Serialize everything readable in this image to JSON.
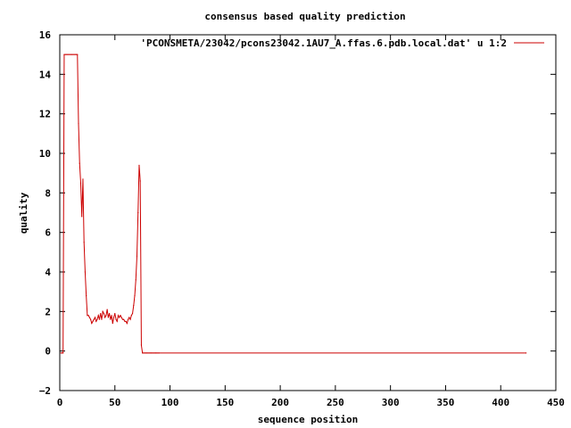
{
  "chart_data": {
    "type": "line",
    "title": "consensus based quality prediction",
    "xlabel": "sequence position",
    "ylabel": "quality",
    "xlim": [
      0,
      450
    ],
    "ylim": [
      -2,
      16
    ],
    "xticks": [
      0,
      50,
      100,
      150,
      200,
      250,
      300,
      350,
      400,
      450
    ],
    "yticks": [
      -2,
      0,
      2,
      4,
      6,
      8,
      10,
      12,
      14,
      16
    ],
    "xtick_labels": [
      "0",
      "50",
      "100",
      "150",
      "200",
      "250",
      "300",
      "350",
      "400",
      "450"
    ],
    "ytick_labels": [
      "−2",
      "0",
      "2",
      "4",
      "6",
      "8",
      "10",
      "12",
      "14",
      "16"
    ],
    "legend_position": "top-right",
    "grid": false,
    "series": [
      {
        "name": "'PCONSMETA/23042/pcons23042.1AU7_A.ffas.6.pdb.local.dat' u 1:2",
        "color": "#cc0000",
        "x": [
          1,
          2,
          3,
          4,
          5,
          6,
          7,
          8,
          9,
          10,
          11,
          12,
          13,
          14,
          15,
          16,
          17,
          18,
          19,
          20,
          21,
          22,
          23,
          24,
          25,
          26,
          27,
          28,
          29,
          30,
          31,
          32,
          33,
          34,
          35,
          36,
          37,
          38,
          39,
          40,
          41,
          42,
          43,
          44,
          45,
          46,
          47,
          48,
          49,
          50,
          51,
          52,
          53,
          54,
          55,
          56,
          57,
          58,
          59,
          60,
          61,
          62,
          63,
          64,
          65,
          66,
          67,
          68,
          69,
          70,
          71,
          72,
          73,
          74,
          75,
          76,
          77,
          78,
          79,
          80,
          81,
          82,
          83,
          84,
          85,
          86,
          87,
          88,
          89,
          90,
          423
        ],
        "y": [
          -0.1,
          -0.1,
          -0.1,
          15,
          15,
          15,
          15,
          15,
          15,
          15,
          15,
          15,
          15,
          15,
          15,
          15,
          11.5,
          9.5,
          8.5,
          6.8,
          8.7,
          5.5,
          4,
          2.8,
          1.8,
          1.8,
          1.7,
          1.6,
          1.4,
          1.5,
          1.6,
          1.7,
          1.5,
          1.6,
          1.8,
          1.6,
          1.9,
          1.6,
          2,
          1.9,
          1.7,
          1.8,
          2.1,
          1.7,
          1.9,
          1.6,
          1.8,
          1.4,
          1.7,
          1.9,
          1.6,
          1.5,
          1.8,
          1.7,
          1.8,
          1.7,
          1.6,
          1.6,
          1.5,
          1.5,
          1.4,
          1.6,
          1.7,
          1.6,
          1.8,
          1.9,
          2.3,
          2.8,
          3.6,
          4.8,
          7,
          9.4,
          8.6,
          0.3,
          -0.1,
          -0.1,
          -0.1,
          -0.1,
          -0.1,
          -0.1,
          -0.1,
          -0.1,
          -0.1,
          -0.1,
          -0.1,
          -0.1,
          -0.1,
          -0.1,
          -0.1,
          -0.1,
          -0.1
        ]
      }
    ]
  }
}
